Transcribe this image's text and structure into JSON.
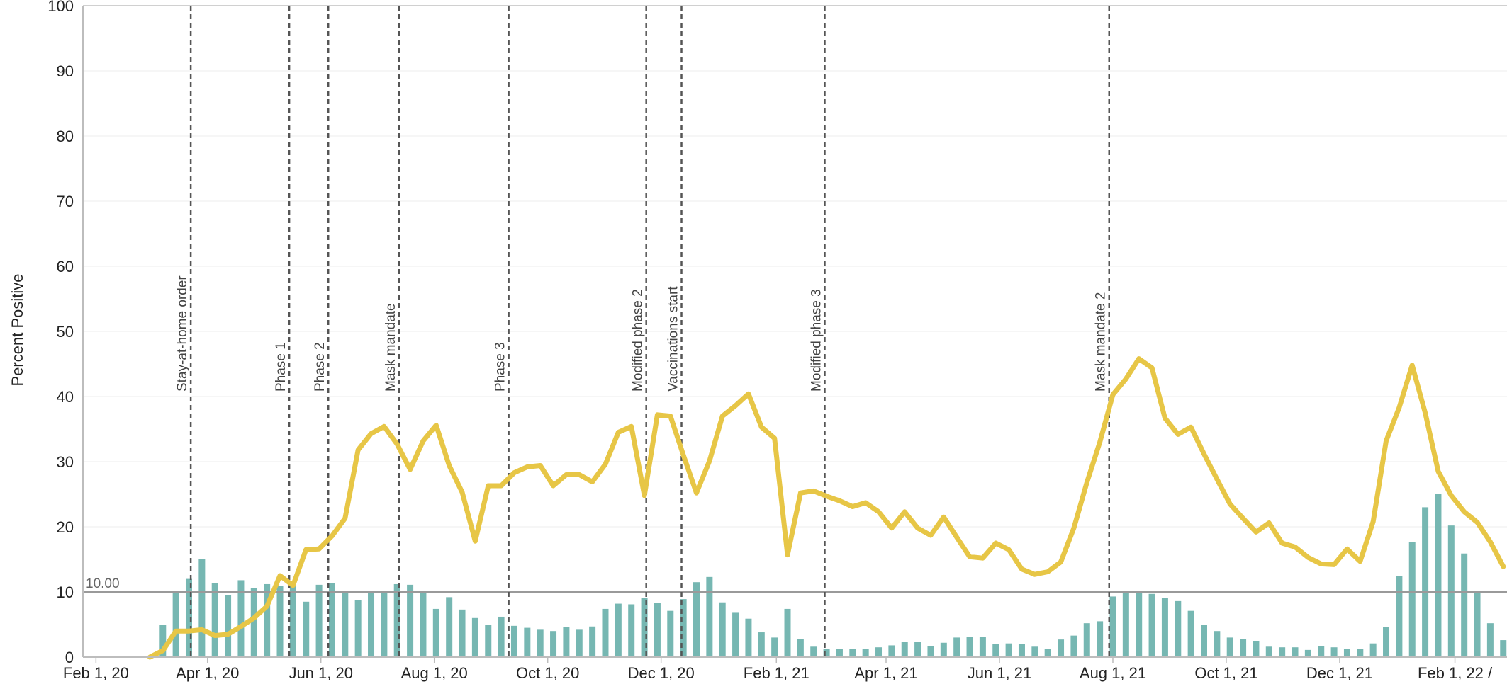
{
  "chart_data": {
    "type": "bar+line",
    "ylabel": "Percent Positive",
    "ylim": [
      0,
      100
    ],
    "yticks": [
      0,
      10,
      20,
      30,
      40,
      50,
      60,
      70,
      80,
      90,
      100
    ],
    "grid": true,
    "x_start": "2020-01-25",
    "x_end": "2022-03-01",
    "xtick_labels": [
      {
        "date": "2020-02-01",
        "label": "Feb 1, 20"
      },
      {
        "date": "2020-04-01",
        "label": "Apr 1, 20"
      },
      {
        "date": "2020-06-01",
        "label": "Jun 1, 20"
      },
      {
        "date": "2020-08-01",
        "label": "Aug 1, 20"
      },
      {
        "date": "2020-10-01",
        "label": "Oct 1, 20"
      },
      {
        "date": "2020-12-01",
        "label": "Dec 1, 20"
      },
      {
        "date": "2021-02-01",
        "label": "Feb 1, 21"
      },
      {
        "date": "2021-04-01",
        "label": "Apr 1, 21"
      },
      {
        "date": "2021-06-01",
        "label": "Jun 1, 21"
      },
      {
        "date": "2021-08-01",
        "label": "Aug 1, 21"
      },
      {
        "date": "2021-10-01",
        "label": "Oct 1, 21"
      },
      {
        "date": "2021-12-01",
        "label": "Dec 1, 21"
      },
      {
        "date": "2022-02-01",
        "label": "Feb 1, 22 /"
      }
    ],
    "reference_line": {
      "value": 10,
      "label": "10.00"
    },
    "events": [
      {
        "date": "2020-03-23",
        "label": "Stay-at-home order"
      },
      {
        "date": "2020-05-15",
        "label": "Phase 1"
      },
      {
        "date": "2020-06-05",
        "label": "Phase 2"
      },
      {
        "date": "2020-07-13",
        "label": "Mask mandate"
      },
      {
        "date": "2020-09-10",
        "label": "Phase 3"
      },
      {
        "date": "2020-11-23",
        "label": "Modified phase 2"
      },
      {
        "date": "2020-12-12",
        "label": "Vaccinations start"
      },
      {
        "date": "2021-02-27",
        "label": "Modified phase 3"
      },
      {
        "date": "2021-07-30",
        "label": "Mask mandate 2"
      }
    ],
    "bars": {
      "color": "#76b7b2",
      "start": "2020-03-08",
      "interval_days": 7,
      "values": [
        5,
        10,
        12,
        15,
        11.4,
        9.5,
        11.8,
        10.6,
        11.2,
        10.9,
        11.1,
        8.5,
        11.1,
        11.4,
        10,
        8.7,
        10.1,
        9.8,
        11.2,
        11.1,
        10,
        7.4,
        9.2,
        7.3,
        6,
        4.9,
        6.2,
        4.8,
        4.5,
        4.2,
        4,
        4.6,
        4.2,
        4.7,
        7.4,
        8.2,
        8.1,
        9.1,
        8.3,
        7.1,
        8.9,
        11.5,
        12.3,
        8.4,
        6.8,
        5.9,
        3.8,
        3,
        7.4,
        2.8,
        1.6,
        1.2,
        1.2,
        1.3,
        1.3,
        1.5,
        1.8,
        2.3,
        2.3,
        1.7,
        2.2,
        3,
        3.1,
        3.1,
        2,
        2.1,
        2,
        1.6,
        1.3,
        2.7,
        3.3,
        5.2,
        5.5,
        9.3,
        9.9,
        9.9,
        9.7,
        9.1,
        8.6,
        7.1,
        4.9,
        4,
        3,
        2.8,
        2.5,
        1.6,
        1.5,
        1.5,
        1.1,
        1.7,
        1.5,
        1.3,
        1.2,
        2.1,
        4.6,
        12.5,
        17.7,
        23,
        25.1,
        20.2,
        15.9,
        9.9,
        5.2,
        2.6,
        2
      ]
    },
    "line": {
      "color": "#e7c646",
      "start": "2020-03-01",
      "interval_days": 7,
      "values": [
        0,
        1,
        4,
        4,
        4.2,
        3.3,
        3.5,
        4.7,
        6,
        7.8,
        12.5,
        11,
        16.5,
        16.6,
        18.6,
        21.3,
        31.8,
        34.3,
        35.4,
        32.7,
        28.8,
        33.2,
        35.6,
        29.4,
        25.3,
        17.8,
        26.3,
        26.3,
        28.3,
        29.2,
        29.4,
        26.3,
        28,
        28,
        26.9,
        29.6,
        34.5,
        35.4,
        24.8,
        37.2,
        37,
        31,
        25.2,
        30.1,
        37,
        38.6,
        40.4,
        35.3,
        33.6,
        15.7,
        25.2,
        25.5,
        24.7,
        24,
        23.1,
        23.7,
        22.3,
        19.8,
        22.3,
        19.8,
        18.7,
        21.5,
        18.4,
        15.4,
        15.2,
        17.5,
        16.5,
        13.5,
        12.7,
        13.1,
        14.6,
        19.8,
        26.8,
        33,
        40.3,
        42.7,
        45.8,
        44.4,
        36.7,
        34.2,
        35.3,
        31.2,
        27.3,
        23.5,
        21.3,
        19.2,
        20.6,
        17.5,
        16.9,
        15.3,
        14.3,
        14.2,
        16.6,
        14.7,
        20.8,
        33.2,
        38.3,
        44.8,
        37.5,
        28.5,
        24.8,
        22.3,
        20.7,
        17.7,
        13.9
      ]
    }
  }
}
